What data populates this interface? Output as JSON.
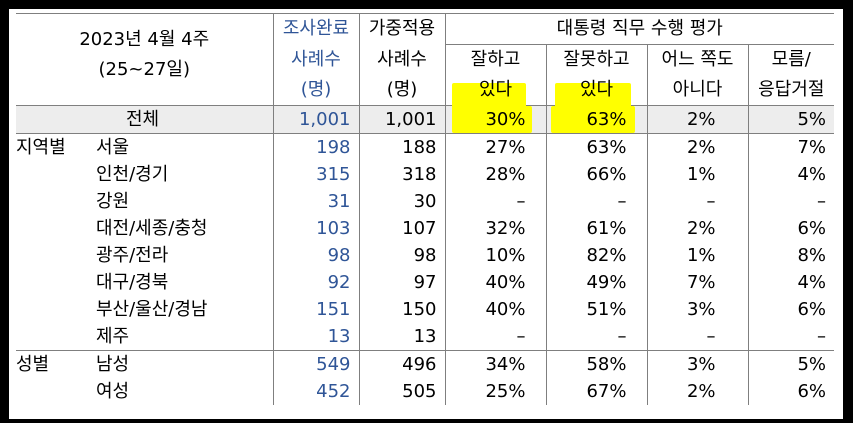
{
  "header": {
    "period": "2023년 4월 4주",
    "dates": "(25~27일)",
    "col_completed": [
      "조사완료",
      "사례수",
      "(명)"
    ],
    "col_weighted": [
      "가중적용",
      "사례수",
      "(명)"
    ],
    "group_title": "대통령 직무 수행 평가",
    "col_good": [
      "잘하고",
      "있다"
    ],
    "col_bad": [
      "잘못하고",
      "있다"
    ],
    "col_neither": [
      "어느 쪽도",
      "아니다"
    ],
    "col_dk": [
      "모름/",
      "응답거절"
    ]
  },
  "total": {
    "label": "전체",
    "n": "1,001",
    "w": "1,001",
    "good": "30%",
    "bad": "63%",
    "neither": "2%",
    "dk": "5%"
  },
  "region": {
    "group_label": "지역별",
    "rows": [
      {
        "label": "서울",
        "n": "198",
        "w": "188",
        "good": "27%",
        "bad": "63%",
        "neither": "2%",
        "dk": "7%"
      },
      {
        "label": "인천/경기",
        "n": "315",
        "w": "318",
        "good": "28%",
        "bad": "66%",
        "neither": "1%",
        "dk": "4%"
      },
      {
        "label": "강원",
        "n": "31",
        "w": "30",
        "good": "–",
        "bad": "–",
        "neither": "–",
        "dk": "–"
      },
      {
        "label": "대전/세종/충청",
        "n": "103",
        "w": "107",
        "good": "32%",
        "bad": "61%",
        "neither": "2%",
        "dk": "6%"
      },
      {
        "label": "광주/전라",
        "n": "98",
        "w": "98",
        "good": "10%",
        "bad": "82%",
        "neither": "1%",
        "dk": "8%"
      },
      {
        "label": "대구/경북",
        "n": "92",
        "w": "97",
        "good": "40%",
        "bad": "49%",
        "neither": "7%",
        "dk": "4%"
      },
      {
        "label": "부산/울산/경남",
        "n": "151",
        "w": "150",
        "good": "40%",
        "bad": "51%",
        "neither": "3%",
        "dk": "6%"
      },
      {
        "label": "제주",
        "n": "13",
        "w": "13",
        "good": "–",
        "bad": "–",
        "neither": "–",
        "dk": "–"
      }
    ]
  },
  "gender": {
    "group_label": "성별",
    "rows": [
      {
        "label": "남성",
        "n": "549",
        "w": "496",
        "good": "34%",
        "bad": "58%",
        "neither": "3%",
        "dk": "5%"
      },
      {
        "label": "여성",
        "n": "452",
        "w": "505",
        "good": "25%",
        "bad": "67%",
        "neither": "2%",
        "dk": "6%"
      }
    ]
  },
  "highlight_color": "#ffff00"
}
